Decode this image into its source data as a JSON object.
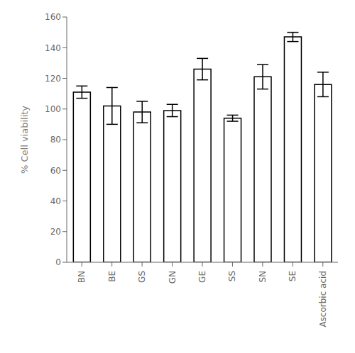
{
  "chart_data": {
    "type": "bar",
    "ylabel": "% Cell viability",
    "categories": [
      "BN",
      "BE",
      "GS",
      "GN",
      "GE",
      "SS",
      "SN",
      "SE",
      "Ascorbic acid"
    ],
    "values": [
      111,
      102,
      98,
      99,
      126,
      94,
      121,
      147,
      116
    ],
    "errors": [
      4,
      12,
      7,
      4,
      7,
      2,
      8,
      3,
      8
    ],
    "color": "#ffffff",
    "ylim": [
      0,
      160
    ],
    "yticks": [
      0,
      20,
      40,
      60,
      80,
      100,
      120,
      140,
      160
    ],
    "grid": false
  }
}
